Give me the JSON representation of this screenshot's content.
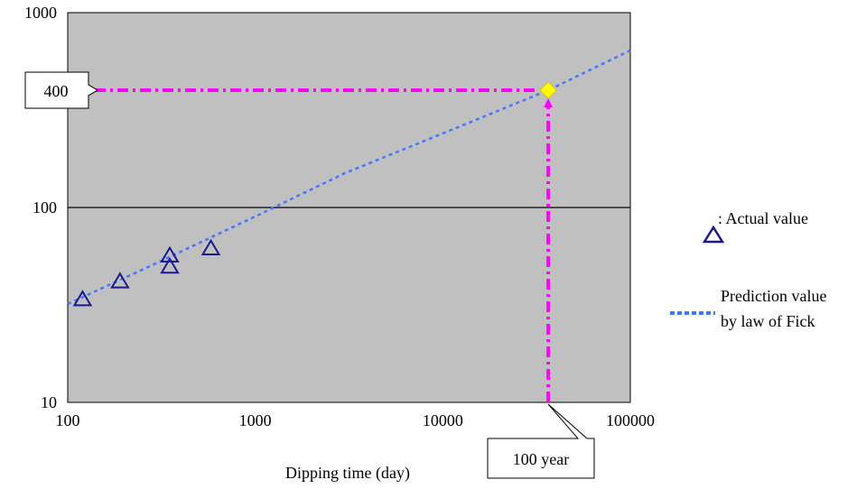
{
  "chart_data": {
    "type": "scatter",
    "x_scale": "log",
    "y_scale": "log",
    "xlim": [
      100,
      100000
    ],
    "ylim": [
      10,
      1000
    ],
    "xlabel": "Dipping time (day)",
    "ylabel": "",
    "x_ticks": [
      "100",
      "1000",
      "10000",
      "100000"
    ],
    "y_ticks": [
      "10",
      "100",
      "1000"
    ],
    "grid": {
      "major_y": true,
      "major_x": false
    },
    "plot_background": "#c0c0c0",
    "series": [
      {
        "name": ": Actual value",
        "kind": "scatter",
        "marker": "open-triangle",
        "color": "#1a1a8c",
        "points": [
          {
            "x": 120,
            "y": 34
          },
          {
            "x": 190,
            "y": 42
          },
          {
            "x": 350,
            "y": 57
          },
          {
            "x": 350,
            "y": 50
          },
          {
            "x": 580,
            "y": 62
          }
        ]
      },
      {
        "name": "Prediction value by law of Fick",
        "name_lines": [
          "Prediction value",
          "by law of Fick"
        ],
        "kind": "line",
        "style": "dotted",
        "color": "#4477ff",
        "points": [
          {
            "x": 100,
            "y": 32
          },
          {
            "x": 300,
            "y": 52
          },
          {
            "x": 1000,
            "y": 90
          },
          {
            "x": 3000,
            "y": 150
          },
          {
            "x": 10000,
            "y": 240
          },
          {
            "x": 36500,
            "y": 400
          },
          {
            "x": 100000,
            "y": 640
          }
        ]
      }
    ],
    "highlight": {
      "point": {
        "x": 36500,
        "y": 400
      },
      "color": "#ffff00",
      "guide_color": "#ff00ff"
    },
    "annotations": [
      {
        "text": "400",
        "target": "y",
        "value": 400
      },
      {
        "text": "100 year",
        "target": "x",
        "value": 36500
      }
    ],
    "legend_position": "right"
  }
}
